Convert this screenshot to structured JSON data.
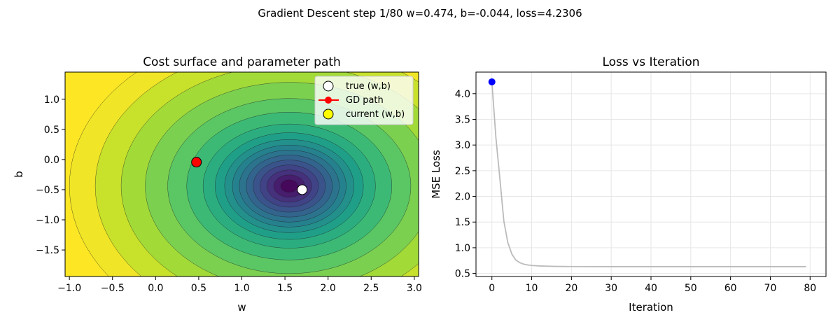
{
  "suptitle": "Gradient Descent step 1/80     w=0.474, b=-0.044, loss=4.2306",
  "chart_data": [
    {
      "type": "contour",
      "title": "Cost surface and parameter path",
      "xlabel": "w",
      "ylabel": "b",
      "xlim": [
        -1.05,
        3.05
      ],
      "ylim": [
        -1.94,
        1.45
      ],
      "xticks": [
        -1.0,
        -0.5,
        0.0,
        0.5,
        1.0,
        1.5,
        2.0,
        2.5,
        3.0
      ],
      "xtick_labels": [
        "−1.0",
        "−0.5",
        "0.0",
        "0.5",
        "1.0",
        "1.5",
        "2.0",
        "2.5",
        "3.0"
      ],
      "yticks": [
        1.0,
        0.5,
        0.0,
        -0.5,
        -1.0,
        -1.5
      ],
      "ytick_labels": [
        "1.0",
        "0.5",
        "0.0",
        "−0.5",
        "−1.0",
        "−1.5"
      ],
      "surface": {
        "center": [
          1.55,
          -0.44
        ],
        "level_radii_w": [
          0.1,
          0.18,
          0.26,
          0.34,
          0.42,
          0.5,
          0.58,
          0.66,
          0.75,
          0.86,
          1.0,
          1.19,
          1.41,
          1.67,
          1.95,
          2.25,
          2.55
        ],
        "b_to_w_ratio": 1.03,
        "colormap": "viridis"
      },
      "true_point": {
        "w": 1.7,
        "b": -0.5
      },
      "gd_path": [
        {
          "w": 0.474,
          "b": -0.044
        }
      ],
      "current": {
        "w": 0.474,
        "b": -0.044
      },
      "legend": {
        "position": "upper right",
        "entries": [
          "true (w,b)",
          "GD path",
          "current (w,b)"
        ]
      },
      "colors": {
        "path": "#ff0000",
        "current": "#ffff00",
        "true": "#ffffff"
      }
    },
    {
      "type": "line",
      "title": "Loss vs Iteration",
      "xlabel": "Iteration",
      "ylabel": "MSE Loss",
      "xlim": [
        -4,
        84
      ],
      "ylim": [
        0.44,
        4.42
      ],
      "xticks": [
        0,
        10,
        20,
        30,
        40,
        50,
        60,
        70,
        80
      ],
      "xtick_labels": [
        "0",
        "10",
        "20",
        "30",
        "40",
        "50",
        "60",
        "70",
        "80"
      ],
      "yticks": [
        4.0,
        3.5,
        3.0,
        2.5,
        2.0,
        1.5,
        1.0,
        0.5
      ],
      "ytick_labels": [
        "4.0",
        "3.5",
        "3.0",
        "2.5",
        "2.0",
        "1.5",
        "1.0",
        "0.5"
      ],
      "grid": true,
      "series": [
        {
          "x": [
            0,
            1,
            2,
            3,
            4,
            5,
            6,
            7,
            8,
            9,
            10,
            12,
            14,
            16,
            18,
            20,
            25,
            30,
            40,
            50,
            60,
            70,
            79
          ],
          "values": [
            4.23,
            3.15,
            2.35,
            1.52,
            1.1,
            0.88,
            0.76,
            0.71,
            0.68,
            0.665,
            0.655,
            0.645,
            0.64,
            0.637,
            0.635,
            0.634,
            0.633,
            0.632,
            0.632,
            0.632,
            0.632,
            0.632,
            0.632
          ],
          "color": "#bbbbbb"
        }
      ],
      "current": {
        "x": 0,
        "y": 4.23,
        "color": "#0000ff"
      }
    }
  ]
}
